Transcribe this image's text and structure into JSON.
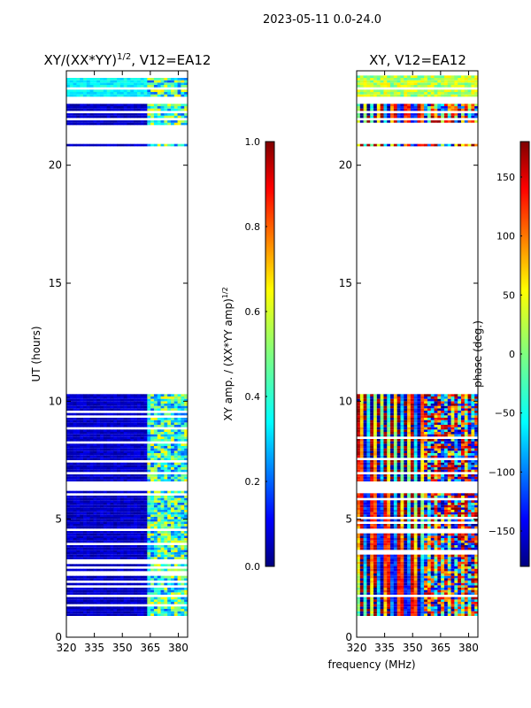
{
  "figure": {
    "suptitle": "2023-05-11 0.0-24.0"
  },
  "chart_data": [
    {
      "type": "heatmap",
      "title": "XY/(XX*YY)^1/2, V12=EA12",
      "title_main": "XY/(XX*YY)",
      "title_sup": "1/2",
      "title_tail": ", V12=EA12",
      "ylabel": "UT (hours)",
      "xlabel": "",
      "xlim": [
        320,
        385
      ],
      "ylim": [
        0,
        24
      ],
      "xticks": [
        "320",
        "335",
        "350",
        "365",
        "380"
      ],
      "xtick_values": [
        320,
        335,
        350,
        365,
        380
      ],
      "yticks": [
        "0",
        "5",
        "10",
        "15",
        "20"
      ],
      "ytick_values": [
        0,
        5,
        10,
        15,
        20
      ],
      "data_time_ranges_hours": [
        [
          0.9,
          6.2
        ],
        [
          6.6,
          6.9
        ],
        [
          7.0,
          10.3
        ],
        [
          20.8,
          20.9
        ],
        [
          21.7,
          21.9
        ],
        [
          22.0,
          22.2
        ],
        [
          22.3,
          22.6
        ],
        [
          22.9,
          23.8
        ]
      ],
      "colorbar": {
        "label_main": "XY amp. / (XX*YY amp)",
        "label_sup": "1/2",
        "range": [
          0.0,
          1.0
        ],
        "ticks": [
          "0.0",
          "0.2",
          "0.4",
          "0.6",
          "0.8",
          "1.0"
        ],
        "tick_values": [
          0.0,
          0.2,
          0.4,
          0.6,
          0.8,
          1.0
        ]
      }
    },
    {
      "type": "heatmap",
      "title": "XY, V12=EA12",
      "ylabel": "",
      "xlabel": "frequency (MHz)",
      "xlim": [
        320,
        385
      ],
      "ylim": [
        0,
        24
      ],
      "xticks": [
        "320",
        "335",
        "350",
        "365",
        "380"
      ],
      "xtick_values": [
        320,
        335,
        350,
        365,
        380
      ],
      "yticks": [
        "0",
        "5",
        "10",
        "15",
        "20"
      ],
      "ytick_values": [
        0,
        5,
        10,
        15,
        20
      ],
      "data_time_ranges_hours": [
        [
          0.9,
          6.2
        ],
        [
          6.6,
          6.9
        ],
        [
          7.0,
          10.3
        ],
        [
          20.8,
          20.9
        ],
        [
          21.7,
          21.9
        ],
        [
          22.0,
          22.2
        ],
        [
          22.3,
          22.6
        ],
        [
          22.9,
          23.8
        ]
      ],
      "colorbar": {
        "label": "phase (deg.)",
        "range": [
          -180,
          180
        ],
        "ticks": [
          "150",
          "100",
          "50",
          "0",
          "−50",
          "−100",
          "−150"
        ],
        "tick_values": [
          150,
          100,
          50,
          0,
          -50,
          -100,
          -150
        ]
      }
    }
  ],
  "colors": {
    "jet": [
      "#00007f",
      "#0000ff",
      "#007fff",
      "#00ffff",
      "#7fff7f",
      "#ffff00",
      "#ff7f00",
      "#ff0000",
      "#7f0000"
    ]
  }
}
